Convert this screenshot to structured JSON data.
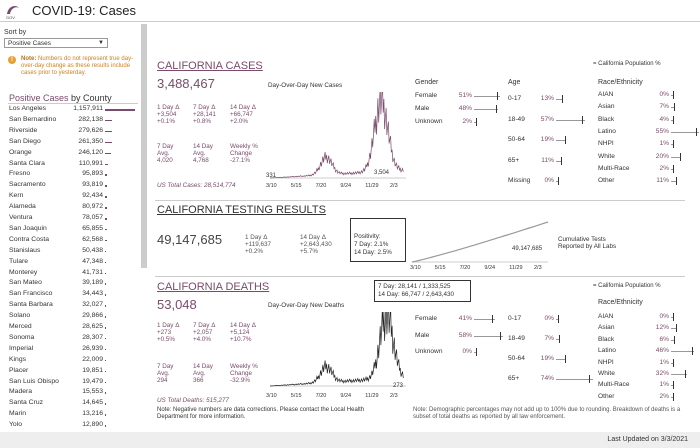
{
  "header": {
    "title": "COVID-19: Cases",
    "logo_text": "GOV"
  },
  "sort": {
    "label": "Sort by",
    "value": "Positive Cases"
  },
  "note": {
    "bold": "Note:",
    "text": "Numbers do not represent true day-over-day change as these results include cases prior to yesterday."
  },
  "county": {
    "title": "Positive Cases",
    "title_sub": "by County",
    "rows": [
      [
        "Los Angeles",
        "1,157,911",
        1157911
      ],
      [
        "San Bernardino",
        "282,138",
        282138
      ],
      [
        "Riverside",
        "279,626",
        279626
      ],
      [
        "San Diego",
        "261,350",
        261350
      ],
      [
        "Orange",
        "246,120",
        246120
      ],
      [
        "Santa Clara",
        "110,991",
        110991
      ],
      [
        "Fresno",
        "95,893",
        95893
      ],
      [
        "Sacramento",
        "93,819",
        93819
      ],
      [
        "Kern",
        "92,434",
        92434
      ],
      [
        "Alameda",
        "80,972",
        80972
      ],
      [
        "Ventura",
        "78,057",
        78057
      ],
      [
        "San Joaquin",
        "65,855",
        65855
      ],
      [
        "Contra Costa",
        "62,568",
        62568
      ],
      [
        "Stanislaus",
        "50,438",
        50438
      ],
      [
        "Tulare",
        "47,348",
        47348
      ],
      [
        "Monterey",
        "41,731",
        41731
      ],
      [
        "San Mateo",
        "39,189",
        39189
      ],
      [
        "San Francisco",
        "34,443",
        34443
      ],
      [
        "Santa Barbara",
        "32,027",
        32027
      ],
      [
        "Solano",
        "29,866",
        29866
      ],
      [
        "Merced",
        "28,625",
        28625
      ],
      [
        "Sonoma",
        "28,307",
        28307
      ],
      [
        "Imperial",
        "26,939",
        26939
      ],
      [
        "Kings",
        "22,009",
        22009
      ],
      [
        "Placer",
        "19,851",
        19851
      ],
      [
        "San Luis Obispo",
        "19,479",
        19479
      ],
      [
        "Madera",
        "15,553",
        15553
      ],
      [
        "Santa Cruz",
        "14,645",
        14645
      ],
      [
        "Marin",
        "13,216",
        13216
      ],
      [
        "Yolo",
        "12,890",
        12890
      ]
    ]
  },
  "cases": {
    "title": "CALIFORNIA CASES",
    "total": "3,488,467",
    "chart_title": "Day-Over-Day New Cases",
    "d1_label": "1 Day Δ",
    "d1_v": "+3,504",
    "d1_p": "+0.1%",
    "d7_label": "7 Day Δ",
    "d7_v": "+28,141",
    "d7_p": "+0.8%",
    "d14_label": "14 Day Δ",
    "d14_v": "+66,747",
    "d14_p": "+2.0%",
    "avg7_l1": "7 Day",
    "avg7_l2": "Avg.",
    "avg7_v": "4,020",
    "avg14_l1": "14 Day",
    "avg14_l2": "Avg.",
    "avg14_v": "4,768",
    "wk_l1": "Weekly %",
    "wk_l2": "Change",
    "wk_v": "-27.1%",
    "us_total": "US Total Cases: 28,514,774",
    "start": "331",
    "end": "3,504",
    "xticks": [
      "3/10",
      "5/15",
      "7/20",
      "9/24",
      "11/29",
      "2/3"
    ]
  },
  "legend": "= California Population %",
  "case_demo": {
    "gender_h": "Gender",
    "age_h": "Age",
    "race_h": "Race/Ethnicity",
    "gender": [
      [
        "Female",
        "51%"
      ],
      [
        "Male",
        "48%"
      ],
      [
        "Unknown",
        "2%"
      ]
    ],
    "age": [
      [
        "0-17",
        "13%"
      ],
      [
        "18-49",
        "57%"
      ],
      [
        "50-64",
        "19%"
      ],
      [
        "65+",
        "11%"
      ],
      [
        "Missing",
        "0%"
      ]
    ],
    "race": [
      [
        "AIAN",
        "0%"
      ],
      [
        "Asian",
        "7%"
      ],
      [
        "Black",
        "4%"
      ],
      [
        "Latino",
        "55%"
      ],
      [
        "NHPI",
        "1%"
      ],
      [
        "White",
        "20%"
      ],
      [
        "Multi-Race",
        "2%"
      ],
      [
        "Other",
        "11%"
      ]
    ]
  },
  "testing": {
    "title": "CALIFORNIA TESTING RESULTS",
    "total": "49,147,685",
    "d1_label": "1 Day Δ",
    "d1_v": "+119,637",
    "d1_p": "+0.2%",
    "d14_label": "14 Day Δ",
    "d14_v": "+2,643,430",
    "d14_p": "+5.7%",
    "pos_h": "Positivity:",
    "pos7": "7 Day: 2.1%",
    "pos14": "14 Day: 2.5%",
    "chart_end": "49,147,685",
    "cum1": "Cumulative Tests",
    "cum2": "Reported by All Labs"
  },
  "tooltip": {
    "l1": "7 Day: 28,141 / 1,333,525",
    "l2": "14 Day: 66,747 / 2,643,430"
  },
  "deaths": {
    "title": "CALIFORNIA DEATHS",
    "total": "53,048",
    "chart_title": "Day-Over-Day New Deaths",
    "d1_label": "1 Day Δ",
    "d1_v": "+273",
    "d1_p": "+0.5%",
    "d7_label": "7 Day Δ",
    "d7_v": "+2,057",
    "d7_p": "+4.0%",
    "d14_label": "14 Day Δ",
    "d14_v": "+5,124",
    "d14_p": "+10.7%",
    "avg7_l1": "7 Day",
    "avg7_l2": "Avg.",
    "avg7_v": "294",
    "avg14_l1": "14 Day",
    "avg14_l2": "Avg.",
    "avg14_v": "366",
    "wk_l1": "Weekly %",
    "wk_l2": "Change",
    "wk_v": "-32.9%",
    "us_total": "US Total Deaths: 515,277",
    "end": "273",
    "note": "Note: Negative numbers are data corrections. Please contact the Local Health Department for more information."
  },
  "death_demo": {
    "gender": [
      [
        "Female",
        "41%"
      ],
      [
        "Male",
        "58%"
      ],
      [
        "Unknown",
        "0%"
      ]
    ],
    "age": [
      [
        "0-17",
        "0%"
      ],
      [
        "18-49",
        "7%"
      ],
      [
        "50-64",
        "19%"
      ],
      [
        "65+",
        "74%"
      ]
    ],
    "race": [
      [
        "AIAN",
        "0%"
      ],
      [
        "Asian",
        "12%"
      ],
      [
        "Black",
        "6%"
      ],
      [
        "Latino",
        "46%"
      ],
      [
        "NHPI",
        "1%"
      ],
      [
        "White",
        "32%"
      ],
      [
        "Multi-Race",
        "1%"
      ],
      [
        "Other",
        "2%"
      ]
    ]
  },
  "demo_note": "Note: Demographic percentages may not add up to 100% due to rounding. Breakdown of deaths is a subset of total deaths as reported by all law enforcement.",
  "footer": "Last Updated on 3/3/2021",
  "colors": {
    "accent": "#7a4b6b"
  }
}
